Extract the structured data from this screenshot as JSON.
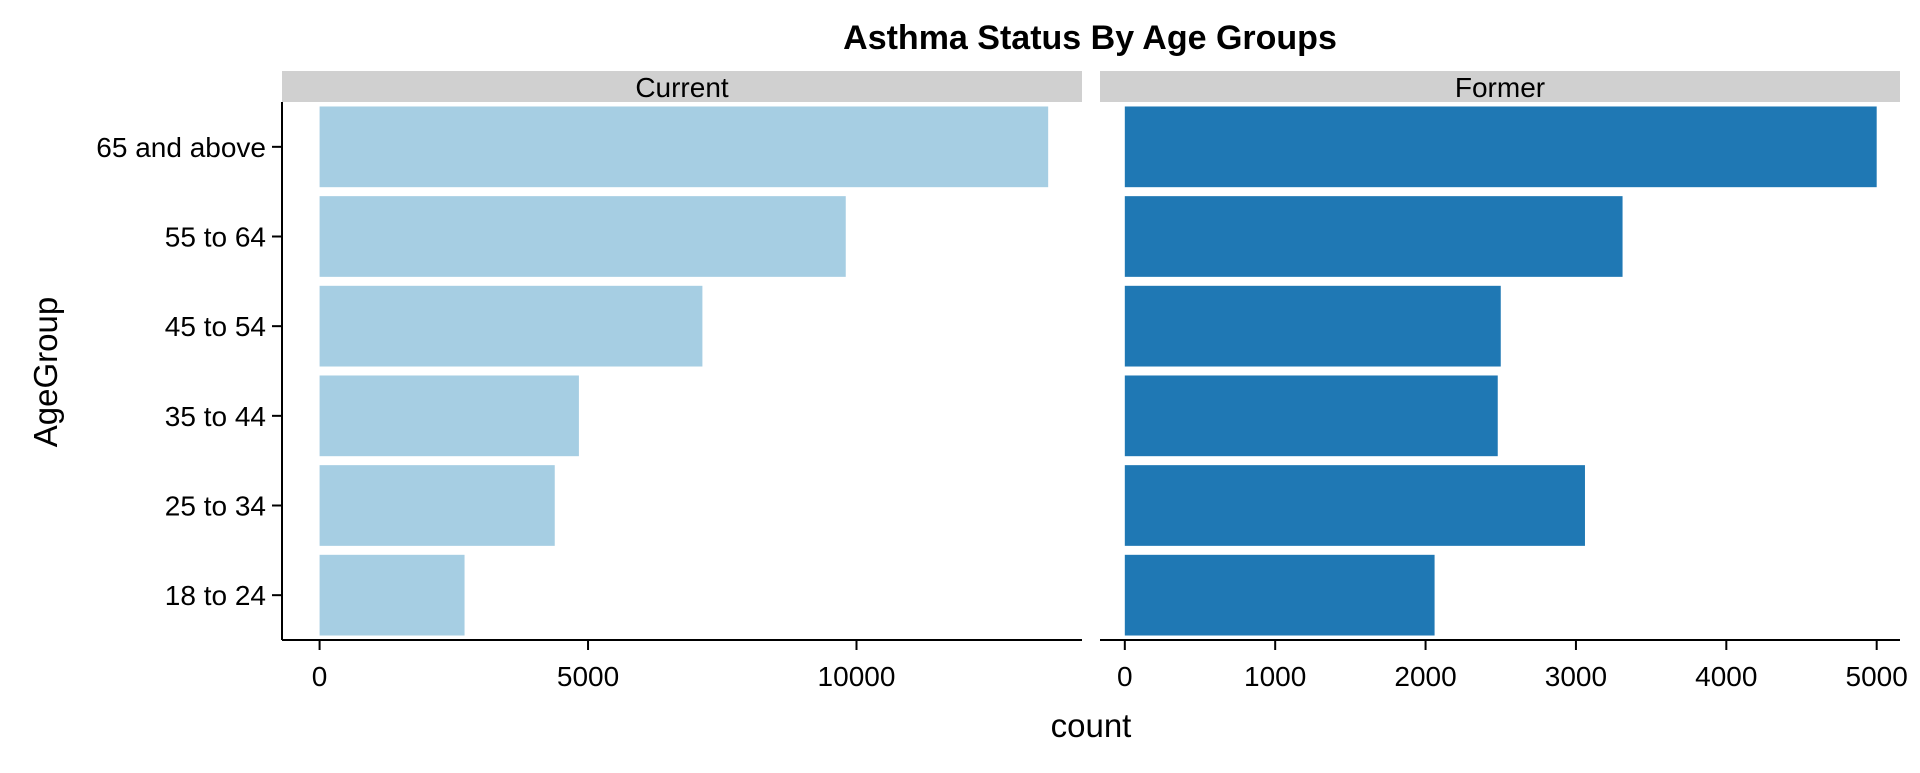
{
  "chart_data": {
    "type": "bar",
    "orientation": "horizontal",
    "title": "Asthma Status By Age Groups",
    "xlabel": "count",
    "ylabel": "AgeGroup",
    "categories": [
      "18 to 24",
      "25 to 34",
      "35 to 44",
      "45 to 54",
      "55 to 64",
      "65 and above"
    ],
    "panels": [
      {
        "name": "Current",
        "color": "#a6cee3",
        "xlim": [
          -700,
          14200
        ],
        "xticks": [
          0,
          5000,
          10000
        ],
        "tick_labels": [
          "0",
          "5000",
          "10000"
        ],
        "values": [
          2700,
          4380,
          4830,
          7130,
          9800,
          13570
        ]
      },
      {
        "name": "Former",
        "color": "#1f78b4",
        "xlim": [
          -165,
          5155
        ],
        "xticks": [
          0,
          1000,
          2000,
          3000,
          4000,
          5000
        ],
        "tick_labels": [
          "0",
          "1000",
          "2000",
          "3000",
          "4000",
          "5000"
        ],
        "values": [
          2060,
          3060,
          2480,
          2500,
          3310,
          5000
        ]
      }
    ],
    "grid": false,
    "legend": "none",
    "facet_strip_color": "#d0d0d0"
  }
}
